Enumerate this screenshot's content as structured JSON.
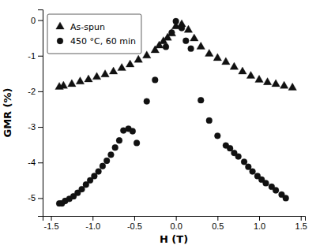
{
  "chart_data": {
    "type": "scatter",
    "xlabel": "H (T)",
    "ylabel": "GMR (%)",
    "xlim": [
      -1.6,
      1.55
    ],
    "ylim": [
      -5.5,
      0.3
    ],
    "xticks": [
      {
        "value": -1.5,
        "label": "-1.5"
      },
      {
        "value": -1.0,
        "label": "-1.0"
      },
      {
        "value": -0.5,
        "label": "-0.5"
      },
      {
        "value": 0.0,
        "label": "0.0"
      },
      {
        "value": 0.5,
        "label": "0.5"
      },
      {
        "value": 1.0,
        "label": "1.0"
      },
      {
        "value": 1.5,
        "label": "1.5"
      }
    ],
    "yticks": [
      0,
      -1,
      -2,
      -3,
      -4,
      -5
    ],
    "legend": "upper left",
    "series": [
      {
        "name": "As-spun",
        "color": "#111111",
        "marker": "triangle",
        "x": [
          -1.4,
          -1.35,
          -1.25,
          -1.15,
          -1.05,
          -0.95,
          -0.85,
          -0.75,
          -0.65,
          -0.55,
          -0.45,
          -0.35,
          -0.25,
          -0.2,
          -0.15,
          -0.1,
          -0.05,
          0.0,
          0.07,
          0.15,
          0.22,
          0.3,
          0.4,
          0.5,
          0.6,
          0.7,
          0.8,
          0.9,
          1.0,
          1.1,
          1.2,
          1.3,
          1.4
        ],
        "values": [
          -1.88,
          -1.85,
          -1.8,
          -1.73,
          -1.67,
          -1.6,
          -1.53,
          -1.45,
          -1.35,
          -1.25,
          -1.12,
          -1.0,
          -0.85,
          -0.72,
          -0.6,
          -0.5,
          -0.38,
          -0.18,
          -0.12,
          -0.28,
          -0.52,
          -0.75,
          -0.95,
          -1.07,
          -1.18,
          -1.32,
          -1.45,
          -1.57,
          -1.68,
          -1.75,
          -1.8,
          -1.85,
          -1.9
        ]
      },
      {
        "name": "450 °C, 60 min",
        "color": "#111111",
        "marker": "circle",
        "x": [
          -1.4,
          -1.37,
          -1.33,
          -1.28,
          -1.23,
          -1.18,
          -1.13,
          -1.08,
          -1.03,
          -0.98,
          -0.93,
          -0.88,
          -0.83,
          -0.78,
          -0.73,
          -0.68,
          -0.63,
          -0.57,
          -0.52,
          -0.47,
          -0.35,
          -0.25,
          -0.12,
          -0.05,
          0.0,
          0.07,
          0.12,
          0.18,
          0.3,
          0.4,
          0.5,
          0.6,
          0.65,
          0.7,
          0.75,
          0.82,
          0.87,
          0.92,
          0.98,
          1.03,
          1.08,
          1.15,
          1.2,
          1.27,
          1.32
        ],
        "values": [
          -5.15,
          -5.15,
          -5.08,
          -5.02,
          -4.95,
          -4.85,
          -4.75,
          -4.62,
          -4.5,
          -4.38,
          -4.25,
          -4.1,
          -3.95,
          -3.78,
          -3.58,
          -3.38,
          -3.1,
          -3.05,
          -3.12,
          -3.45,
          -2.28,
          -1.68,
          -0.75,
          -0.35,
          -0.03,
          -0.22,
          -0.58,
          -0.8,
          -2.25,
          -2.82,
          -3.25,
          -3.52,
          -3.6,
          -3.73,
          -3.83,
          -3.98,
          -4.12,
          -4.25,
          -4.38,
          -4.48,
          -4.58,
          -4.68,
          -4.78,
          -4.9,
          -5.0
        ]
      }
    ]
  }
}
